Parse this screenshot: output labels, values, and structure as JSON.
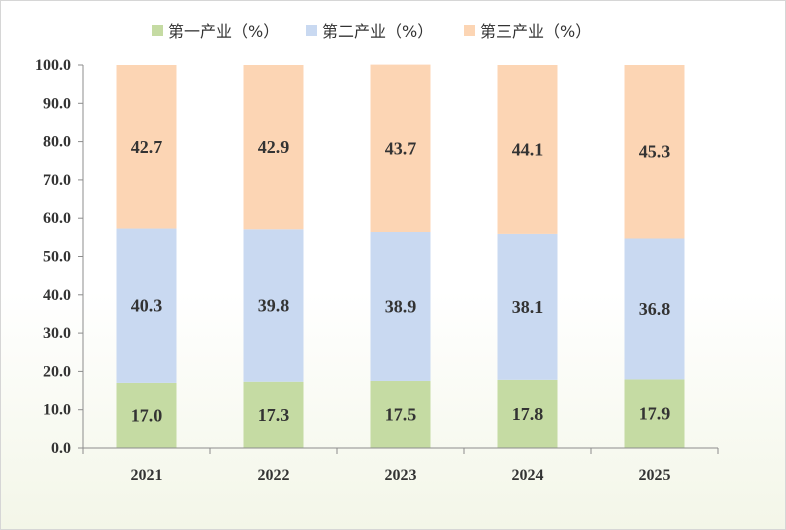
{
  "chart_data": {
    "type": "bar",
    "stacked": true,
    "categories": [
      "2021",
      "2022",
      "2023",
      "2024",
      "2025"
    ],
    "series": [
      {
        "name": "第一产业（%）",
        "color": "#c5dba3",
        "values": [
          17.0,
          17.3,
          17.5,
          17.8,
          17.9
        ]
      },
      {
        "name": "第二产业（%）",
        "color": "#c9d9f1",
        "values": [
          40.3,
          39.8,
          38.9,
          38.1,
          36.8
        ]
      },
      {
        "name": "第三产业（%）",
        "color": "#fcd5b4",
        "values": [
          42.7,
          42.9,
          43.7,
          44.1,
          45.3
        ]
      }
    ],
    "y_ticks": [
      "0.0",
      "10.0",
      "20.0",
      "30.0",
      "40.0",
      "50.0",
      "60.0",
      "70.0",
      "80.0",
      "90.0",
      "100.0"
    ],
    "ylim": [
      0,
      100
    ],
    "grid": false,
    "legend_position": "top"
  }
}
